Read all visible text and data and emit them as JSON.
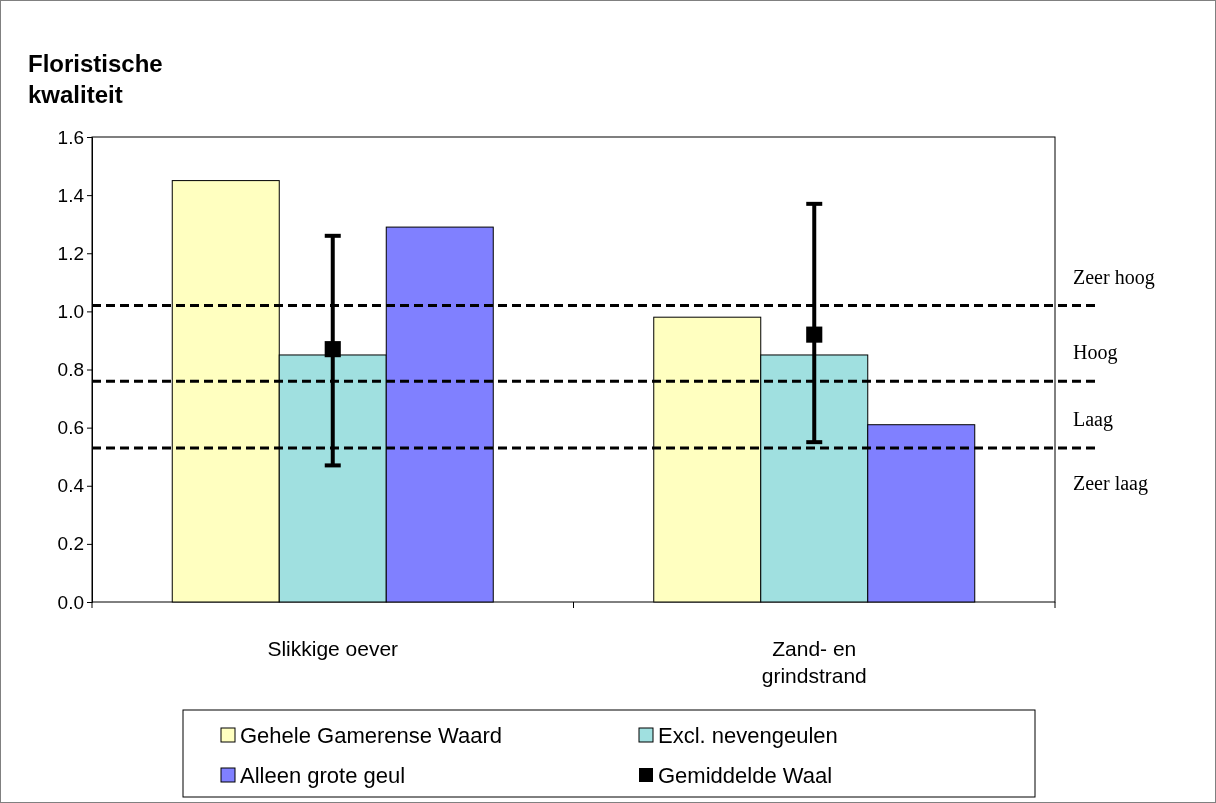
{
  "chart_data": {
    "type": "bar",
    "ylabel": "Floristische kwaliteit",
    "categories": [
      "Slikkige oever",
      "Zand- en grindstrand"
    ],
    "series": [
      {
        "name": "Gehele Gamerense Waard",
        "color": "#ffffc0",
        "values": [
          1.45,
          0.98
        ]
      },
      {
        "name": "Excl. nevengeulen",
        "color": "#a0e0e0",
        "values": [
          0.85,
          0.85
        ]
      },
      {
        "name": "Alleen grote geul",
        "color": "#8080ff",
        "values": [
          1.29,
          0.61
        ]
      },
      {
        "name": "Gemiddelde Waal",
        "type": "scatter",
        "color": "#000000",
        "x": [
          "Slikkige oever",
          "Zand- en grindstrand"
        ],
        "values": [
          0.87,
          0.92
        ],
        "errors": [
          [
            0.47,
            1.26
          ],
          [
            0.55,
            1.37
          ]
        ],
        "marker": "square"
      }
    ],
    "ylim": [
      0,
      1.6
    ],
    "yticks": [
      {
        "value": 0,
        "label": "0.0"
      },
      {
        "value": 0.2,
        "label": "0.2"
      },
      {
        "value": 0.4,
        "label": "0.4"
      },
      {
        "value": 0.6,
        "label": "0.6"
      },
      {
        "value": 0.8,
        "label": "0.8"
      },
      {
        "value": 1.0,
        "label": "1.0"
      },
      {
        "value": 1.2,
        "label": "1.2"
      },
      {
        "value": 1.4,
        "label": "1.4"
      },
      {
        "value": 1.6,
        "label": "1.6"
      }
    ],
    "ref_lines": [
      {
        "axis": "y",
        "value": 1.02,
        "label": "Zeer hoog",
        "color": "#000000",
        "line_style": "dashed"
      },
      {
        "axis": "y",
        "value": 0.76,
        "label": "Hoog",
        "color": "#000000",
        "line_style": "dashed"
      },
      {
        "axis": "y",
        "value": 0.53,
        "label": "Laag",
        "color": "#000000",
        "line_style": "dashed"
      }
    ],
    "annotations": [
      "Zeer laag"
    ],
    "grid": false,
    "legend": "bottom"
  }
}
